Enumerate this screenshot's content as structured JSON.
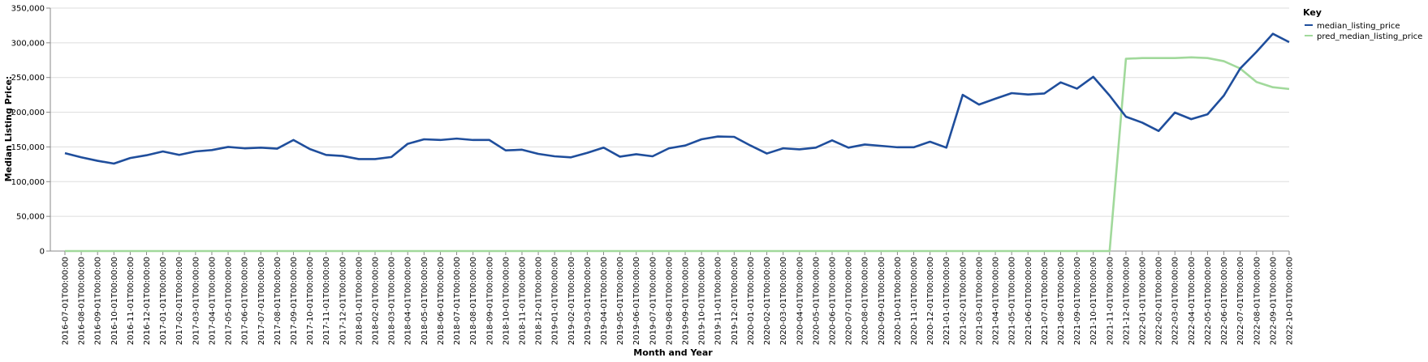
{
  "chart_data": {
    "type": "line",
    "xlabel": "Month and Year",
    "ylabel": "Median Listing Price:",
    "ylim": [
      0,
      350000
    ],
    "yticks": [
      "0",
      "50,000",
      "100,000",
      "150,000",
      "200,000",
      "250,000",
      "300,000",
      "350,000"
    ],
    "ytick_values": [
      0,
      50000,
      100000,
      150000,
      200000,
      250000,
      300000,
      350000
    ],
    "grid": true,
    "legend": {
      "title": "Key",
      "position": "top-right"
    },
    "x": [
      "2016-07-01T00:00:00",
      "2016-08-01T00:00:00",
      "2016-09-01T00:00:00",
      "2016-10-01T00:00:00",
      "2016-11-01T00:00:00",
      "2016-12-01T00:00:00",
      "2017-01-01T00:00:00",
      "2017-02-01T00:00:00",
      "2017-03-01T00:00:00",
      "2017-04-01T00:00:00",
      "2017-05-01T00:00:00",
      "2017-06-01T00:00:00",
      "2017-07-01T00:00:00",
      "2017-08-01T00:00:00",
      "2017-09-01T00:00:00",
      "2017-10-01T00:00:00",
      "2017-11-01T00:00:00",
      "2017-12-01T00:00:00",
      "2018-01-01T00:00:00",
      "2018-02-01T00:00:00",
      "2018-03-01T00:00:00",
      "2018-04-01T00:00:00",
      "2018-05-01T00:00:00",
      "2018-06-01T00:00:00",
      "2018-07-01T00:00:00",
      "2018-08-01T00:00:00",
      "2018-09-01T00:00:00",
      "2018-10-01T00:00:00",
      "2018-11-01T00:00:00",
      "2018-12-01T00:00:00",
      "2019-01-01T00:00:00",
      "2019-02-01T00:00:00",
      "2019-03-01T00:00:00",
      "2019-04-01T00:00:00",
      "2019-05-01T00:00:00",
      "2019-06-01T00:00:00",
      "2019-07-01T00:00:00",
      "2019-08-01T00:00:00",
      "2019-09-01T00:00:00",
      "2019-10-01T00:00:00",
      "2019-11-01T00:00:00",
      "2019-12-01T00:00:00",
      "2020-01-01T00:00:00",
      "2020-02-01T00:00:00",
      "2020-03-01T00:00:00",
      "2020-04-01T00:00:00",
      "2020-05-01T00:00:00",
      "2020-06-01T00:00:00",
      "2020-07-01T00:00:00",
      "2020-08-01T00:00:00",
      "2020-09-01T00:00:00",
      "2020-10-01T00:00:00",
      "2020-11-01T00:00:00",
      "2020-12-01T00:00:00",
      "2021-01-01T00:00:00",
      "2021-02-01T00:00:00",
      "2021-03-01T00:00:00",
      "2021-04-01T00:00:00",
      "2021-05-01T00:00:00",
      "2021-06-01T00:00:00",
      "2021-07-01T00:00:00",
      "2021-08-01T00:00:00",
      "2021-09-01T00:00:00",
      "2021-10-01T00:00:00",
      "2021-11-01T00:00:00",
      "2021-12-01T00:00:00",
      "2022-01-01T00:00:00",
      "2022-02-01T00:00:00",
      "2022-03-01T00:00:00",
      "2022-04-01T00:00:00",
      "2022-05-01T00:00:00",
      "2022-06-01T00:00:00",
      "2022-07-01T00:00:00",
      "2022-08-01T00:00:00",
      "2022-09-01T00:00:00",
      "2022-10-01T00:00:00"
    ],
    "series": [
      {
        "name": "median_listing_price",
        "color": "#1f4e9c",
        "values": [
          141000,
          135000,
          130000,
          126000,
          134000,
          138000,
          143500,
          138500,
          143500,
          145500,
          150000,
          148000,
          149000,
          147500,
          160000,
          147000,
          138500,
          137000,
          132500,
          132500,
          135500,
          154500,
          161000,
          160000,
          162000,
          160000,
          160000,
          145000,
          146000,
          140000,
          136500,
          135000,
          141500,
          149000,
          136000,
          139500,
          136500,
          148000,
          152000,
          161000,
          165000,
          164500,
          152000,
          140500,
          148000,
          146500,
          149000,
          159500,
          149000,
          153500,
          151500,
          149500,
          149500,
          157500,
          149000,
          225000,
          211000,
          219500,
          227500,
          225500,
          227000,
          243000,
          234000,
          251000,
          224000,
          193500,
          185000,
          173000,
          199500,
          190000,
          197000,
          224000,
          263000,
          287000,
          313000,
          301000
        ]
      },
      {
        "name": "pred_median_listing_price",
        "color": "#a1d99b",
        "values": [
          0,
          0,
          0,
          0,
          0,
          0,
          0,
          0,
          0,
          0,
          0,
          0,
          0,
          0,
          0,
          0,
          0,
          0,
          0,
          0,
          0,
          0,
          0,
          0,
          0,
          0,
          0,
          0,
          0,
          0,
          0,
          0,
          0,
          0,
          0,
          0,
          0,
          0,
          0,
          0,
          0,
          0,
          0,
          0,
          0,
          0,
          0,
          0,
          0,
          0,
          0,
          0,
          0,
          0,
          0,
          0,
          0,
          0,
          0,
          0,
          0,
          0,
          0,
          0,
          0,
          277000,
          278000,
          278000,
          278000,
          279000,
          278000,
          273500,
          263000,
          243500,
          236000,
          233500
        ]
      }
    ]
  }
}
